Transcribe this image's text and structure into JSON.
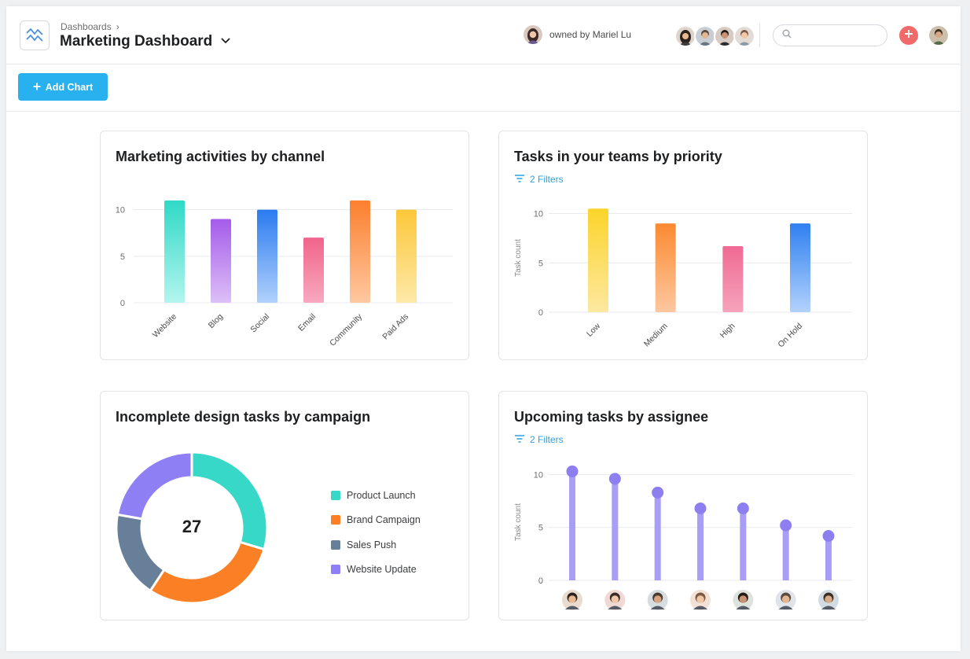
{
  "header": {
    "breadcrumb": "Dashboards",
    "breadcrumb_separator": "›",
    "title": "Marketing Dashboard",
    "owner_text": "owned by Mariel Lu",
    "search_placeholder": "",
    "icons": {
      "app": "dashboard-chart-icon",
      "dropdown": "chevron-down-icon",
      "search": "search-icon",
      "add": "plus-icon"
    }
  },
  "toolbar": {
    "add_chart_label": "Add Chart",
    "add_chart_icon": "plus-icon"
  },
  "colors": {
    "primary": "#28b1ee",
    "add_button": "#f06a6a",
    "filter_link": "#28a1e0",
    "lollipop": "#a99ef6",
    "lollipop_dot": "#8e7ff1"
  },
  "chart_data": [
    {
      "type": "bar",
      "title": "Marketing activities by channel",
      "categories": [
        "Website",
        "Blog",
        "Social",
        "Email",
        "Community",
        "Paid Ads"
      ],
      "values": [
        11,
        9,
        10,
        7,
        11,
        10
      ],
      "ylabel": "",
      "yticks": [
        "10",
        "5",
        "0"
      ],
      "ylim": [
        0,
        12
      ],
      "colors": [
        [
          "#2fd9c6",
          "#b3f5ee"
        ],
        [
          "#a55bea",
          "#dcc0f7"
        ],
        [
          "#2b7bf0",
          "#b1d1fc"
        ],
        [
          "#f0648a",
          "#f8a9c0"
        ],
        [
          "#fb7f2e",
          "#fec8a0"
        ],
        [
          "#fcc73a",
          "#fde9a8"
        ]
      ],
      "grid": true
    },
    {
      "type": "bar",
      "title": "Tasks in your teams by priority",
      "filters": "2 Filters",
      "categories": [
        "Low",
        "Medium",
        "High",
        "On Hold"
      ],
      "values": [
        10.5,
        9,
        6.7,
        9
      ],
      "ylabel": "Task count",
      "yticks": [
        "10",
        "5",
        "0"
      ],
      "ylim": [
        0,
        11
      ],
      "colors": [
        [
          "#fcd42a",
          "#fde8a0"
        ],
        [
          "#fb8a30",
          "#fec7a0"
        ],
        [
          "#f06a93",
          "#f6a3bc"
        ],
        [
          "#2f80f0",
          "#b3d2fc"
        ]
      ],
      "grid": true
    },
    {
      "type": "pie",
      "title": "Incomplete design tasks by campaign",
      "total": "27",
      "labels": [
        "Product Launch",
        "Brand Campaign",
        "Sales Push",
        "Website Update"
      ],
      "values": [
        8,
        8,
        5,
        6
      ],
      "colors": [
        "#37d8c8",
        "#fb7f24",
        "#677f98",
        "#8f7ff4"
      ]
    },
    {
      "type": "scatter",
      "title": "Upcoming tasks by assignee",
      "filters": "2 Filters",
      "ylabel": "Task count",
      "yticks": [
        "10",
        "5",
        "0"
      ],
      "ylim": [
        0,
        11
      ],
      "values": [
        10.3,
        9.6,
        8.3,
        6.8,
        6.8,
        5.2,
        4.2
      ],
      "grid": true
    }
  ]
}
